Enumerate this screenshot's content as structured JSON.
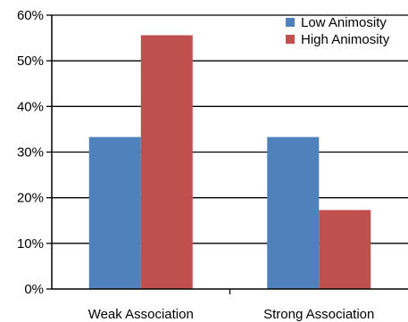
{
  "chart_data": {
    "type": "bar",
    "categories": [
      "Weak Association",
      "Strong Association"
    ],
    "series": [
      {
        "name": "Low Animosity",
        "color": "#4f81bd",
        "values": [
          33.3,
          33.3
        ]
      },
      {
        "name": "High Animosity",
        "color": "#c0504d",
        "values": [
          55.6,
          17.3
        ]
      }
    ],
    "ylim": [
      0,
      60
    ],
    "yticks": [
      "0%",
      "10%",
      "20%",
      "30%",
      "40%",
      "50%",
      "60%"
    ],
    "y_tick_values": [
      0,
      10,
      20,
      30,
      40,
      50,
      60
    ],
    "grid": true,
    "legend_position": "top-right"
  }
}
